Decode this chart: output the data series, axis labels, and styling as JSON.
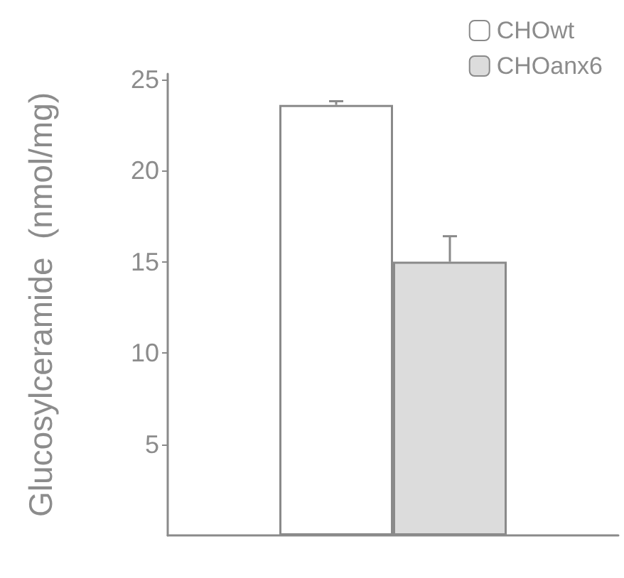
{
  "chart_data": {
    "type": "bar",
    "ylabel": "Glucosylceramide  (nmol/mg)",
    "categories": [
      null
    ],
    "series": [
      {
        "name": "CHOwt",
        "color": "#ffffff",
        "values": [
          23.6
        ],
        "errors": [
          [
            23.6,
            23.8
          ]
        ]
      },
      {
        "name": "CHOanx6",
        "color": "#dcdcdc",
        "values": [
          15.0
        ],
        "errors": [
          [
            15.0,
            16.4
          ]
        ]
      }
    ],
    "ylim": [
      0,
      25.3
    ],
    "yticks": [
      5,
      10,
      15,
      20,
      25
    ],
    "grid": false,
    "legend": "top right"
  }
}
